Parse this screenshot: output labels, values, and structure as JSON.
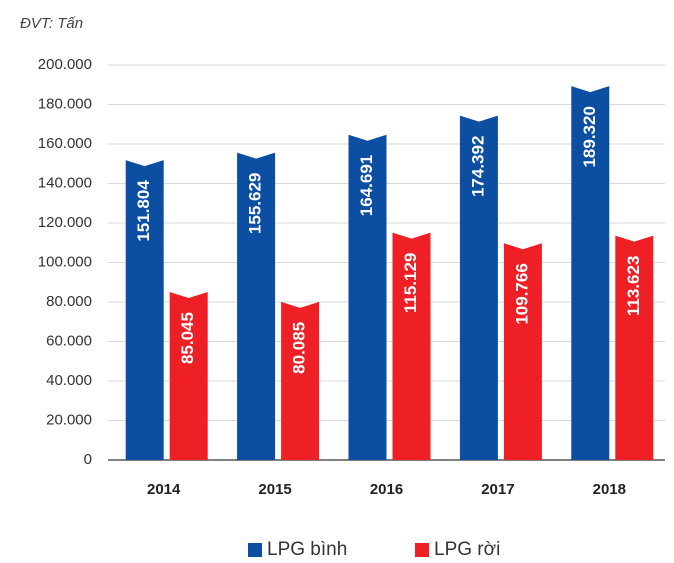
{
  "chart_data": {
    "type": "bar",
    "y_label": "ĐVT: Tấn",
    "categories": [
      "2014",
      "2015",
      "2016",
      "2017",
      "2018"
    ],
    "series": [
      {
        "name": "LPG bình",
        "color": "#0b4ea2",
        "values": [
          151804,
          155629,
          164691,
          174392,
          189320
        ],
        "value_labels": [
          "151.804",
          "155.629",
          "164.691",
          "174.392",
          "189.320"
        ]
      },
      {
        "name": "LPG rời",
        "color": "#ee2026",
        "values": [
          85045,
          80085,
          115129,
          109766,
          113623
        ],
        "value_labels": [
          "85.045",
          "80.085",
          "115.129",
          "109.766",
          "113.623"
        ]
      }
    ],
    "ylim": [
      0,
      200000
    ],
    "yticks": [
      0,
      {
        "value": 20000,
        "label": "20.000"
      },
      {
        "value": 40000,
        "label": "40.000"
      },
      {
        "value": 60000,
        "label": "60.000"
      },
      {
        "value": 80000,
        "label": "80.000"
      },
      {
        "value": 100000,
        "label": "100.000"
      },
      {
        "value": 120000,
        "label": "120.000"
      },
      {
        "value": 140000,
        "label": "140.000"
      },
      {
        "value": 160000,
        "label": "160.000"
      },
      {
        "value": 180000,
        "label": "180.000"
      },
      {
        "value": 200000,
        "label": "200.000"
      }
    ],
    "grid": true,
    "legend": "bottom"
  }
}
